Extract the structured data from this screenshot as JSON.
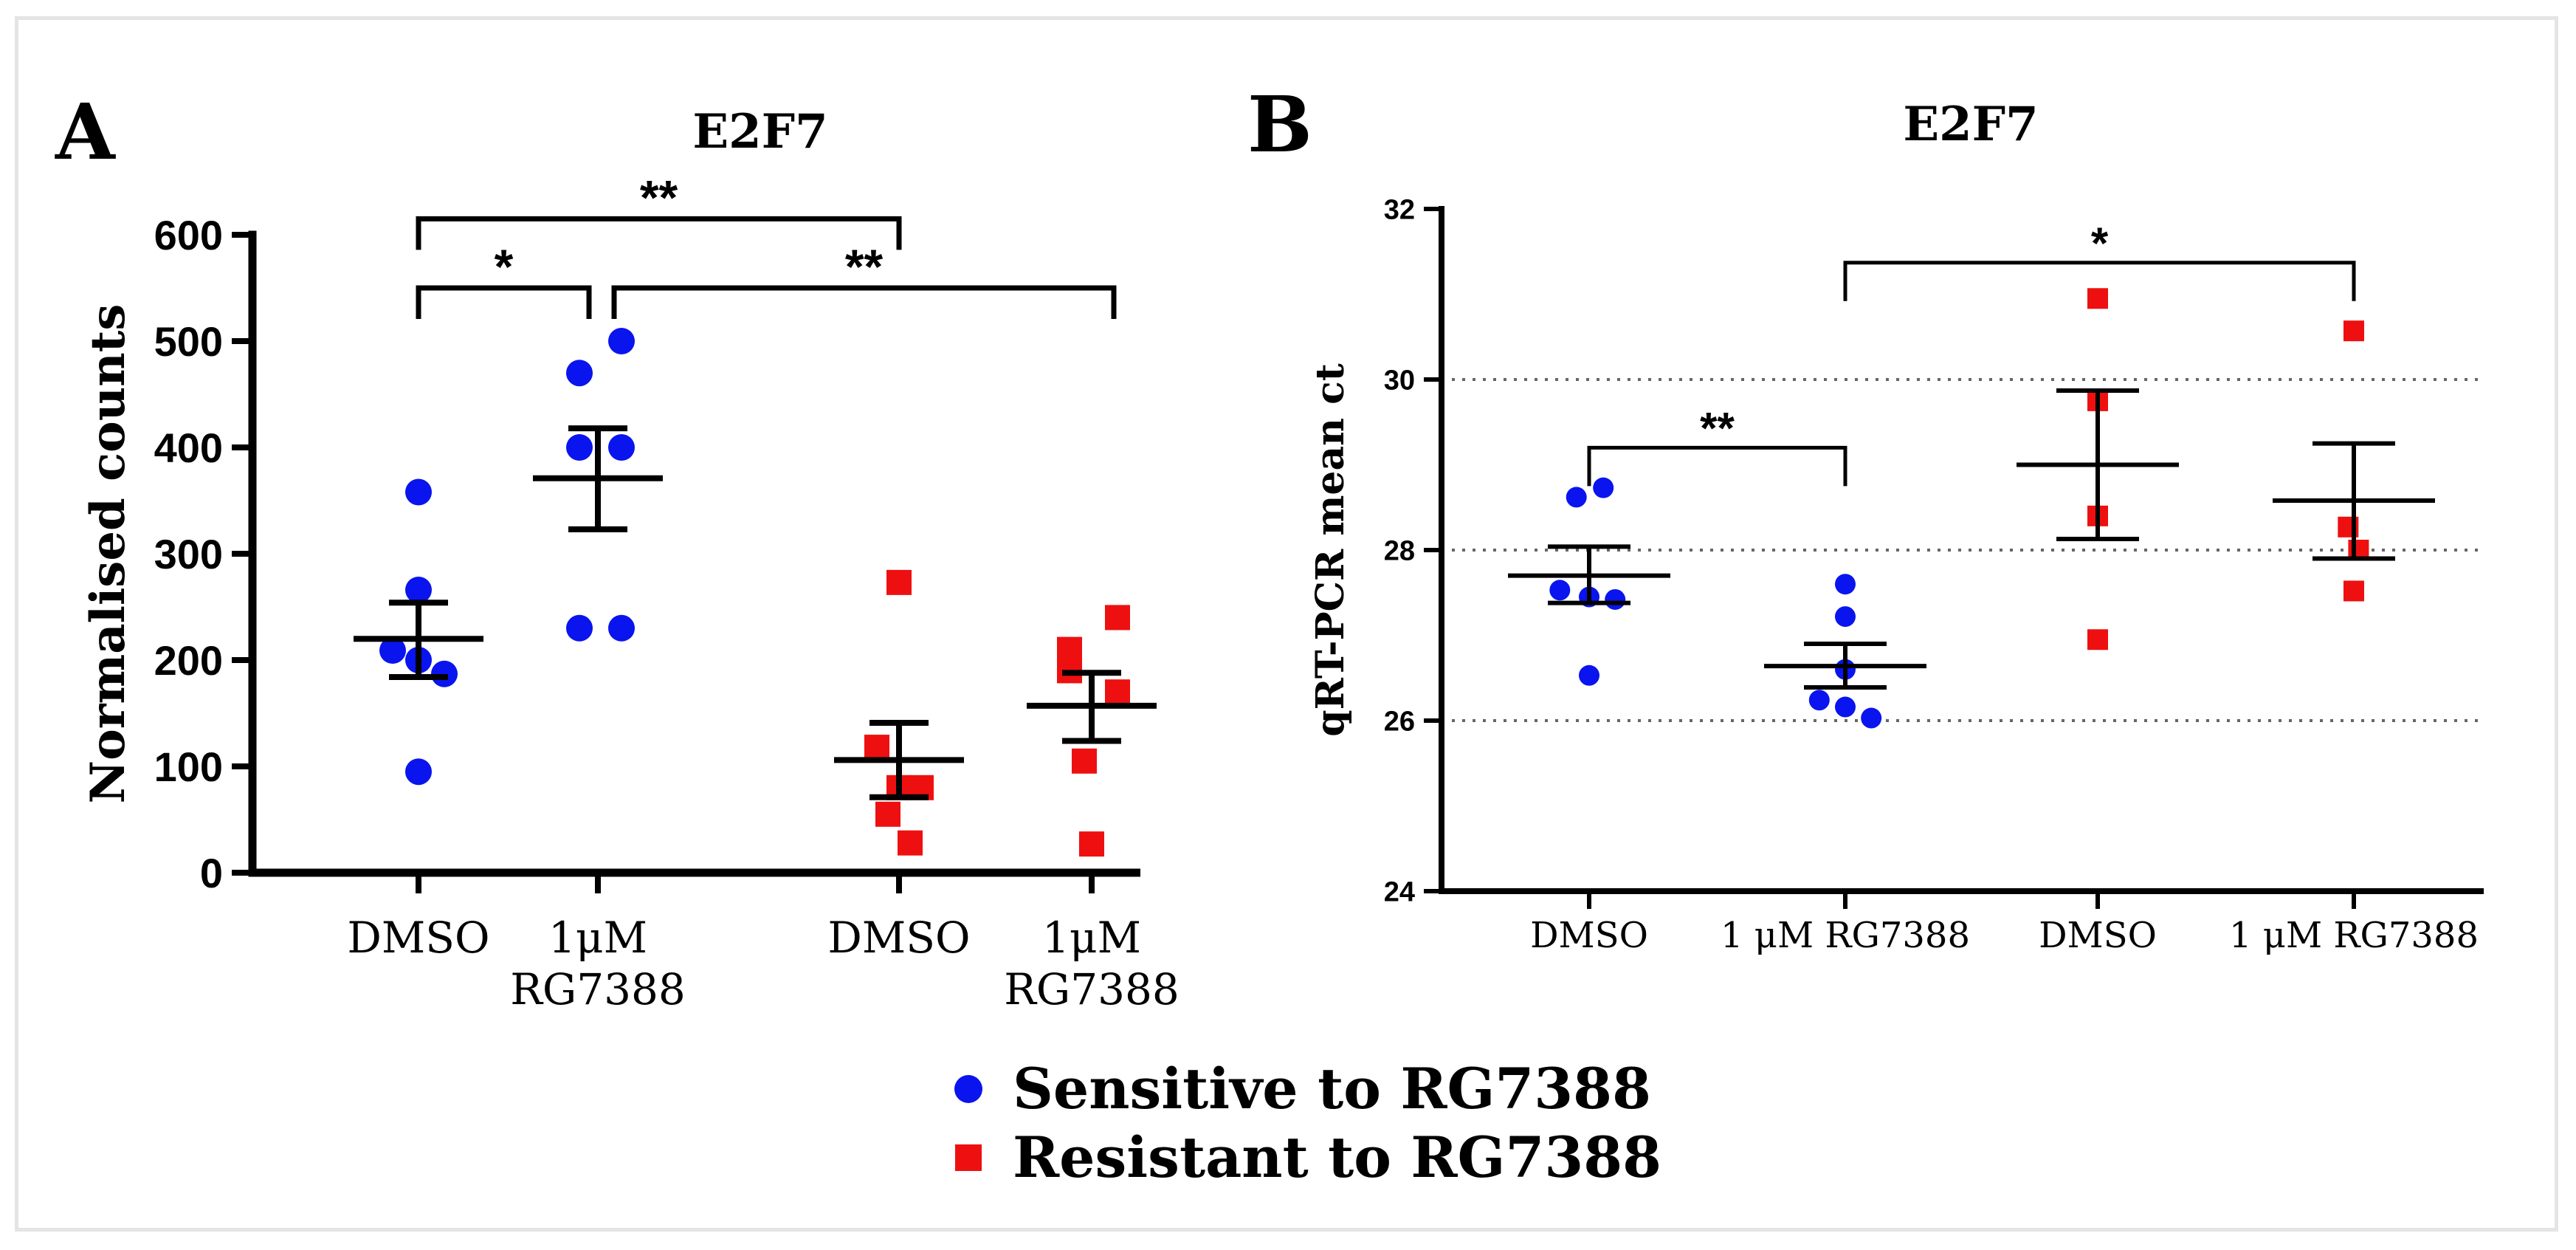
{
  "legend": {
    "items": [
      {
        "label": "Sensitive to RG7388",
        "color": "#0a14ee",
        "marker": "circle"
      },
      {
        "label": "Resistant to RG7388",
        "color": "#ee1010",
        "marker": "square"
      }
    ]
  },
  "chart_data": [
    {
      "panel_label": "A",
      "type": "scatter",
      "title": "E2F7",
      "ylabel": "Normalised counts",
      "xlabel": "",
      "ylim": [
        0,
        600
      ],
      "yticks": [
        0,
        100,
        200,
        300,
        400,
        500,
        600
      ],
      "ytick_labels": [
        "0",
        "100",
        "200",
        "300",
        "400",
        "500",
        "600"
      ],
      "grid": false,
      "groups": [
        {
          "label_lines": [
            "DMSO"
          ],
          "series": "Sensitive to RG7388",
          "color": "#0a14ee",
          "marker": "circle",
          "points": [
            358,
            266,
            209,
            200,
            187,
            95
          ],
          "jitter": [
            0,
            0,
            -0.35,
            0,
            0.35,
            0
          ],
          "mean": 220,
          "sem_low": 184,
          "sem_high": 254
        },
        {
          "label_lines": [
            "1μM",
            "RG7388"
          ],
          "series": "Sensitive to RG7388",
          "color": "#0a14ee",
          "marker": "circle",
          "points": [
            500,
            470,
            400,
            400,
            230,
            230
          ],
          "jitter": [
            0.32,
            -0.25,
            -0.25,
            0.32,
            -0.25,
            0.32
          ],
          "mean": 371,
          "sem_low": 323,
          "sem_high": 418
        },
        {
          "label_lines": [
            "DMSO"
          ],
          "series": "Resistant to RG7388",
          "color": "#ee1010",
          "marker": "square",
          "points": [
            273,
            118,
            80,
            80,
            55,
            28
          ],
          "jitter": [
            0,
            -0.3,
            0,
            0.3,
            -0.15,
            0.15
          ],
          "mean": 106,
          "sem_low": 71,
          "sem_high": 141
        },
        {
          "label_lines": [
            "1μM",
            "RG7388"
          ],
          "series": "Resistant to RG7388",
          "color": "#ee1010",
          "marker": "square",
          "points": [
            240,
            210,
            190,
            170,
            105,
            27
          ],
          "jitter": [
            0.35,
            -0.3,
            -0.3,
            0.35,
            -0.1,
            0
          ],
          "mean": 157,
          "sem_low": 124,
          "sem_high": 188
        }
      ],
      "significance": [
        {
          "from": 0,
          "to": 2,
          "label": "**",
          "level": 615
        },
        {
          "from": 0,
          "to": 1,
          "label": "*",
          "level": 550
        },
        {
          "from": 1,
          "to": 3,
          "label": "**",
          "level": 550
        }
      ]
    },
    {
      "panel_label": "B",
      "type": "scatter",
      "title": "E2F7",
      "ylabel": "qRT-PCR mean ct",
      "xlabel": "",
      "ylim": [
        24,
        32
      ],
      "yticks": [
        24,
        26,
        28,
        30,
        32
      ],
      "ytick_labels": [
        "24",
        "26",
        "28",
        "30",
        "32"
      ],
      "grid": true,
      "grid_lines": [
        26,
        28,
        30
      ],
      "groups": [
        {
          "label_lines": [
            "DMSO"
          ],
          "series": "Sensitive to RG7388",
          "color": "#0a14ee",
          "marker": "circle",
          "points": [
            28.73,
            28.62,
            27.53,
            27.45,
            27.42,
            26.53
          ],
          "jitter": [
            0.3,
            -0.27,
            -0.62,
            0,
            0.55,
            0
          ],
          "mean": 27.7,
          "sem_low": 27.38,
          "sem_high": 28.04
        },
        {
          "label_lines": [
            "1 μM RG7388"
          ],
          "series": "Sensitive to RG7388",
          "color": "#0a14ee",
          "marker": "circle",
          "points": [
            27.6,
            27.22,
            26.6,
            26.24,
            26.16,
            26.03
          ],
          "jitter": [
            0,
            0,
            0,
            -0.55,
            0,
            0.55
          ],
          "mean": 26.64,
          "sem_low": 26.39,
          "sem_high": 26.9
        },
        {
          "label_lines": [
            "DMSO"
          ],
          "series": "Resistant to RG7388",
          "color": "#ee1010",
          "marker": "square",
          "points": [
            30.95,
            29.75,
            28.4,
            26.95
          ],
          "jitter": [
            0,
            0,
            0,
            0
          ],
          "mean": 29.0,
          "sem_low": 28.13,
          "sem_high": 29.87
        },
        {
          "label_lines": [
            "1 μM RG7388"
          ],
          "series": "Resistant to RG7388",
          "color": "#ee1010",
          "marker": "square",
          "points": [
            30.57,
            28.27,
            28.0,
            27.52
          ],
          "jitter": [
            0,
            -0.12,
            0.1,
            0
          ],
          "mean": 28.58,
          "sem_low": 27.9,
          "sem_high": 29.25
        }
      ],
      "significance": [
        {
          "from": 1,
          "to": 3,
          "label": "*",
          "level": 31.37
        },
        {
          "from": 0,
          "to": 1,
          "label": "**",
          "level": 29.2
        }
      ]
    }
  ]
}
